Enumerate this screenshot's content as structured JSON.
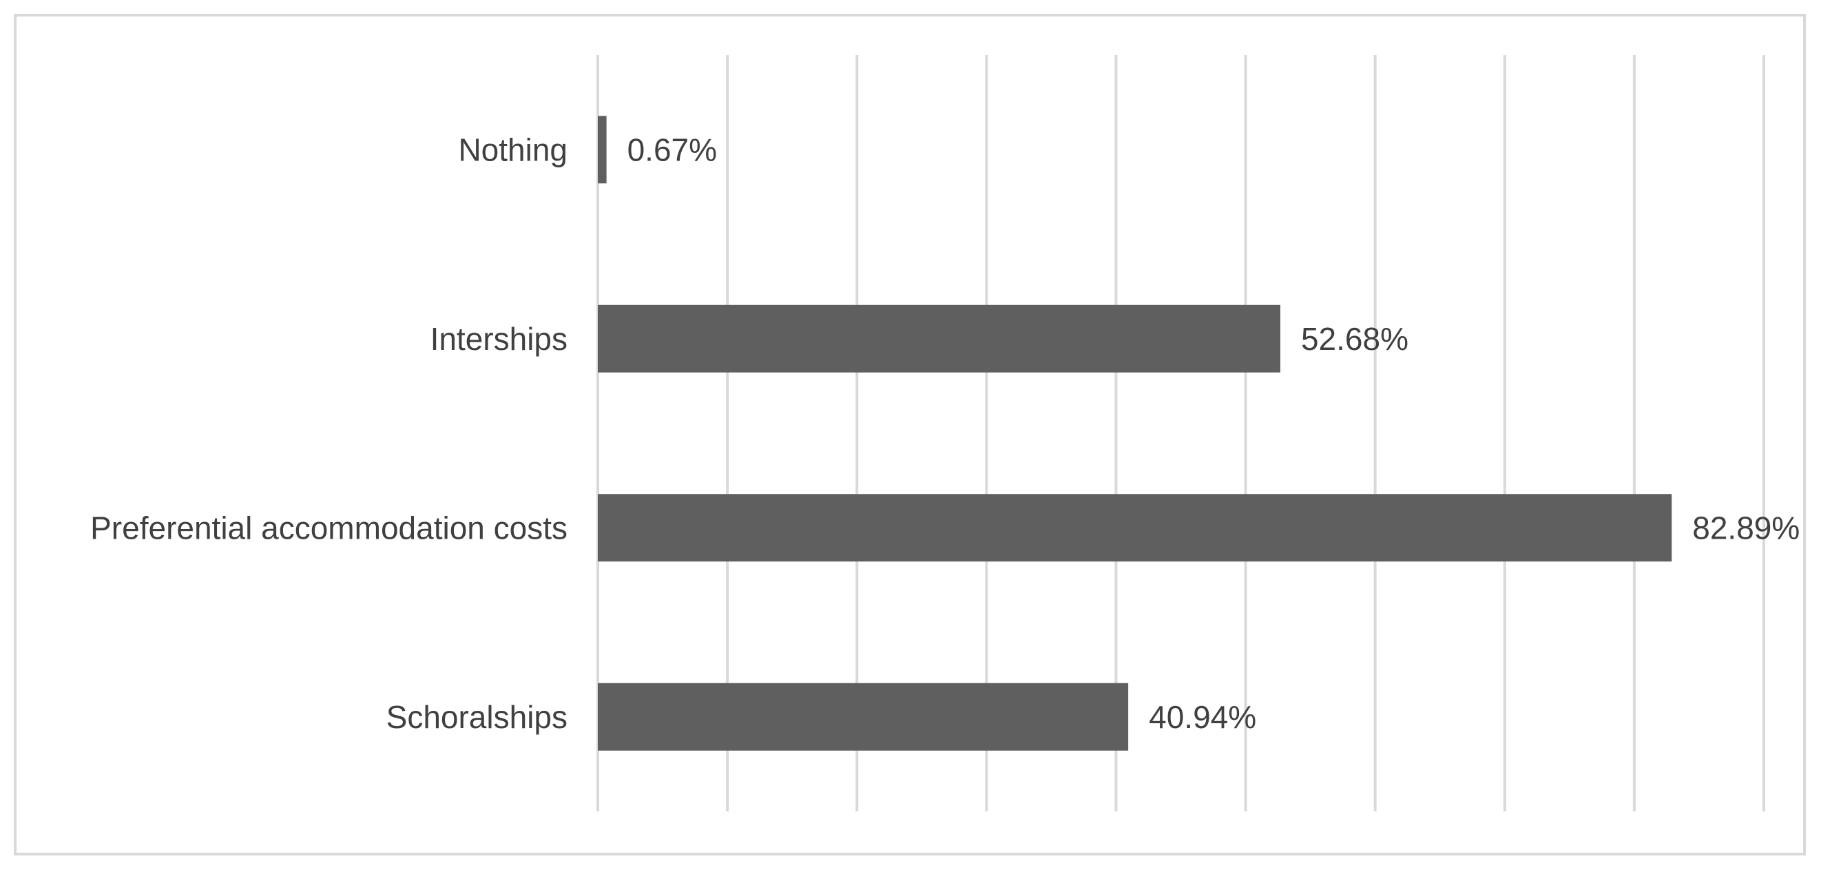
{
  "chart_data": {
    "type": "bar",
    "orientation": "horizontal",
    "categories": [
      "Nothing",
      "Interships",
      "Preferential accommodation costs",
      "Schoralships"
    ],
    "values": [
      0.67,
      52.68,
      82.89,
      40.94
    ],
    "value_labels": [
      "0.67%",
      "52.68%",
      "82.89%",
      "40.94%"
    ],
    "unit": "%",
    "xlim": [
      0,
      90
    ],
    "grid": "vertical",
    "colors": {
      "bar": "#5f5f5f",
      "grid": "#d9d9d9",
      "text": "#404040"
    }
  }
}
